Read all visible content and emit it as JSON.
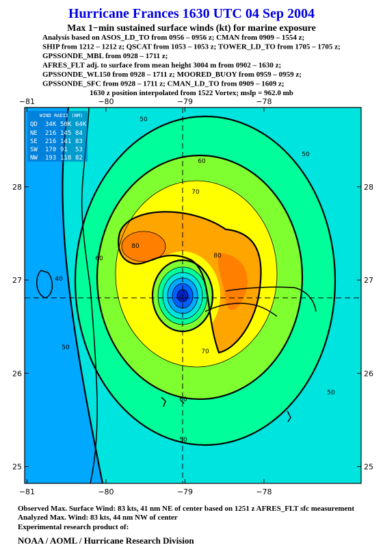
{
  "header": {
    "title": "Hurricane Frances 1630 UTC 04 Sep 2004",
    "subtitle": "Max 1−min sustained surface winds (kt) for marine exposure",
    "analysis_lines": [
      "Analysis based on  ASOS_LD_TO from 0956 – 0956 z;  CMAN from 0909 – 1554 z;",
      "SHIP from 1212 – 1212 z;  QSCAT from 1053 – 1053 z;  TOWER_LD_TO from 1705 – 1705 z;",
      "GPSSONDE_MBL from 0928 – 1711 z;",
      "AFRES_FLT adj. to surface from mean height 3004 m from 0902 – 1630 z;",
      "GPSSONDE_WL150 from 0928 – 1711 z;  MOORED_BUOY from 0959 – 0959 z;",
      "GPSSONDE_SFC from 0928 – 1711 z;  CMAN_LD_TO from 0909 – 1609 z;"
    ],
    "position_note": "1630 z position interpolated from 1522 Vortex; mslp = 962.0 mb"
  },
  "map": {
    "xlim": [
      -81.03,
      -76.77
    ],
    "ylim": [
      24.82,
      28.85
    ],
    "xticks": [
      {
        "value": -81,
        "label": "−81"
      },
      {
        "value": -80,
        "label": "−80"
      },
      {
        "value": -79,
        "label": "−79"
      },
      {
        "value": -78,
        "label": "−78"
      }
    ],
    "yticks": [
      25,
      26,
      27,
      28
    ],
    "wind_radii": {
      "title": "WIND RADII (NM)",
      "header": [
        "QD",
        "34K",
        "50K",
        "64K"
      ],
      "rows": [
        [
          "NE",
          "216",
          "145",
          "84"
        ],
        [
          "SE",
          "216",
          "141",
          "83"
        ],
        [
          "SW",
          "170",
          "91",
          "53"
        ],
        [
          "NW",
          "193",
          "118",
          "82"
        ]
      ]
    },
    "contour_labels": [
      50,
      50,
      60,
      70,
      80,
      80,
      60,
      40,
      50,
      50,
      70,
      60,
      50
    ]
  },
  "footer": {
    "observed": "Observed Max. Surface Wind: 83 kts, 41 nm NE of center based on 1251 z AFRES_FLT sfc measurement",
    "analyzed": "Analyzed Max. Wind: 83 kts, 44 nm NW of center",
    "credit_intro": "Experimental research product of:",
    "credit": "NOAA / AOML / Hurricane Research Division"
  }
}
